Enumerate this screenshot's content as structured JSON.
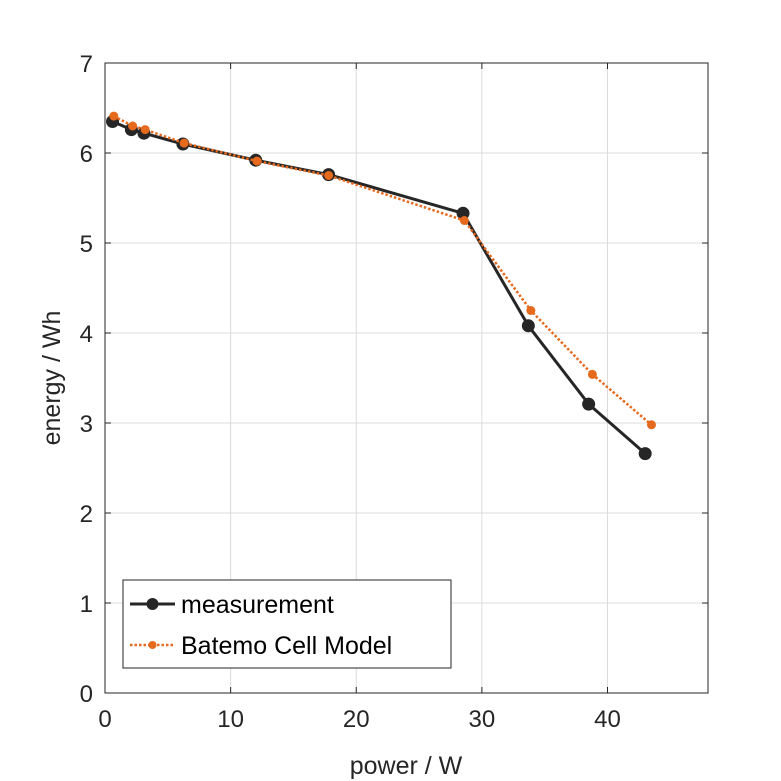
{
  "chart_data": {
    "type": "line",
    "title": "",
    "xlabel": "power / W",
    "ylabel": "energy / Wh",
    "xlim": [
      0,
      48
    ],
    "ylim": [
      0,
      7
    ],
    "xticks": [
      0,
      10,
      20,
      30,
      40
    ],
    "yticks": [
      0,
      1,
      2,
      3,
      4,
      5,
      6,
      7
    ],
    "grid": true,
    "legend_position": "bottom-left",
    "series": [
      {
        "name": "measurement",
        "color": "#262626",
        "line_style": "solid",
        "marker": "large-circle",
        "x": [
          0.6,
          2.1,
          3.1,
          6.2,
          12.0,
          17.8,
          28.5,
          33.7,
          38.5,
          43.0
        ],
        "y": [
          6.35,
          6.26,
          6.22,
          6.1,
          5.92,
          5.76,
          5.33,
          4.08,
          3.21,
          2.66
        ]
      },
      {
        "name": "Batemo Cell Model",
        "color": "#E66A1E",
        "line_style": "dotted",
        "marker": "small-circle",
        "x": [
          0.7,
          2.2,
          3.2,
          6.3,
          12.1,
          17.8,
          28.6,
          33.9,
          38.8,
          43.5
        ],
        "y": [
          6.41,
          6.3,
          6.26,
          6.11,
          5.91,
          5.75,
          5.25,
          4.25,
          3.54,
          2.98
        ]
      }
    ]
  }
}
